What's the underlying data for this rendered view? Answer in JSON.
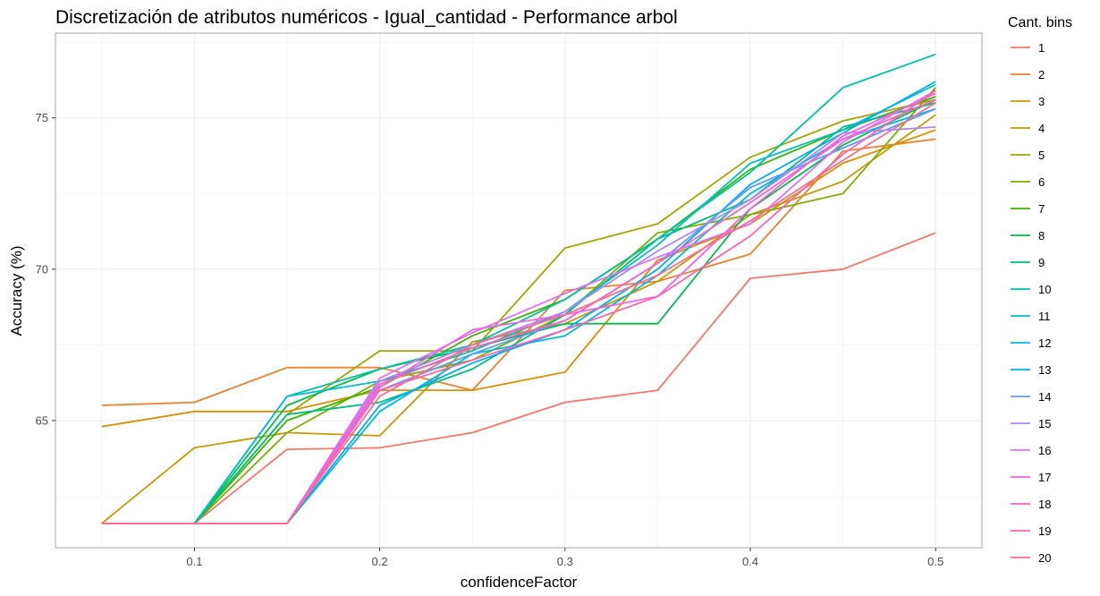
{
  "chart_data": {
    "type": "line",
    "title": "Discretización de atributos numéricos - Igual_cantidad - Performance arbol",
    "xlabel": "confidenceFactor",
    "ylabel": "Accuracy (%)",
    "xlim": [
      0.025,
      0.525
    ],
    "ylim": [
      60.8,
      77.8
    ],
    "xticks": [
      0.1,
      0.2,
      0.3,
      0.4,
      0.5
    ],
    "xtick_labels": [
      "0.1",
      "0.2",
      "0.3",
      "0.4",
      "0.5"
    ],
    "yticks": [
      65,
      70,
      75
    ],
    "ytick_labels": [
      "65",
      "70",
      "75"
    ],
    "grid": true,
    "legend": {
      "title": "Cant. bins",
      "position": "right"
    },
    "x": [
      0.05,
      0.1,
      0.15,
      0.2,
      0.25,
      0.3,
      0.35,
      0.4,
      0.45,
      0.5
    ],
    "series": [
      {
        "name": "1",
        "color": "#F8766D",
        "values": [
          61.6,
          61.6,
          64.05,
          64.1,
          64.6,
          65.6,
          66.0,
          69.7,
          70.0,
          71.2
        ]
      },
      {
        "name": "2",
        "color": "#EA8331",
        "values": [
          65.5,
          65.6,
          66.75,
          66.75,
          66.0,
          69.3,
          69.6,
          70.5,
          73.9,
          74.3
        ]
      },
      {
        "name": "3",
        "color": "#D89000",
        "values": [
          64.8,
          65.3,
          65.3,
          66.0,
          66.0,
          66.6,
          70.3,
          71.5,
          73.5,
          74.6
        ]
      },
      {
        "name": "4",
        "color": "#C09B00",
        "values": [
          61.6,
          64.1,
          64.6,
          64.5,
          67.6,
          68.2,
          69.6,
          71.8,
          72.9,
          75.1
        ]
      },
      {
        "name": "5",
        "color": "#A3A500",
        "values": [
          61.6,
          61.6,
          65.2,
          67.3,
          67.3,
          70.7,
          71.5,
          73.7,
          74.9,
          75.6
        ]
      },
      {
        "name": "6",
        "color": "#7CAE00",
        "values": [
          61.6,
          61.6,
          64.6,
          66.3,
          67.0,
          68.5,
          71.2,
          71.8,
          72.5,
          76.0
        ]
      },
      {
        "name": "7",
        "color": "#39B600",
        "values": [
          61.6,
          61.6,
          65.0,
          66.1,
          67.8,
          69.0,
          71.0,
          73.3,
          74.6,
          75.7
        ]
      },
      {
        "name": "8",
        "color": "#00BB4E",
        "values": [
          61.6,
          61.6,
          65.5,
          66.7,
          67.4,
          68.2,
          68.2,
          72.0,
          74.1,
          75.6
        ]
      },
      {
        "name": "9",
        "color": "#00BF7D",
        "values": [
          61.6,
          61.6,
          65.2,
          65.6,
          66.7,
          68.5,
          71.0,
          72.3,
          74.7,
          75.5
        ]
      },
      {
        "name": "10",
        "color": "#00C1A3",
        "values": [
          61.6,
          61.6,
          65.8,
          66.7,
          67.5,
          69.0,
          71.0,
          73.2,
          76.0,
          77.1
        ]
      },
      {
        "name": "11",
        "color": "#00BFC4",
        "values": [
          61.6,
          61.6,
          65.8,
          66.3,
          67.3,
          68.6,
          70.8,
          73.5,
          74.6,
          76.1
        ]
      },
      {
        "name": "12",
        "color": "#00B9E3",
        "values": [
          61.6,
          61.6,
          61.6,
          65.3,
          67.2,
          67.8,
          69.8,
          72.5,
          74.3,
          75.3
        ]
      },
      {
        "name": "13",
        "color": "#00ADFA",
        "values": [
          61.6,
          61.6,
          61.6,
          65.5,
          66.9,
          68.0,
          70.0,
          72.8,
          74.5,
          76.2
        ]
      },
      {
        "name": "14",
        "color": "#619CFF",
        "values": [
          61.6,
          61.6,
          61.6,
          66.0,
          67.2,
          68.3,
          70.2,
          72.7,
          74.0,
          75.3
        ]
      },
      {
        "name": "15",
        "color": "#AE87FF",
        "values": [
          61.6,
          61.6,
          61.6,
          66.3,
          67.5,
          68.6,
          70.6,
          72.3,
          74.5,
          74.7
        ]
      },
      {
        "name": "16",
        "color": "#DB72FB",
        "values": [
          61.6,
          61.6,
          61.6,
          66.4,
          67.9,
          69.2,
          70.4,
          71.5,
          74.2,
          75.9
        ]
      },
      {
        "name": "17",
        "color": "#F564E3",
        "values": [
          61.6,
          61.6,
          61.6,
          66.1,
          68.0,
          68.5,
          69.1,
          72.0,
          74.4,
          75.8
        ]
      },
      {
        "name": "18",
        "color": "#FF61C3",
        "values": [
          61.6,
          61.6,
          61.6,
          66.2,
          67.4,
          68.3,
          70.2,
          72.2,
          74.3,
          75.6
        ]
      },
      {
        "name": "19",
        "color": "#FF64B0",
        "values": [
          61.6,
          61.6,
          61.6,
          66.0,
          67.0,
          68.0,
          69.1,
          71.1,
          73.8,
          75.9
        ]
      },
      {
        "name": "20",
        "color": "#FF6C91",
        "values": [
          61.6,
          61.6,
          61.6,
          65.8,
          67.5,
          68.5,
          69.8,
          71.6,
          73.6,
          75.5
        ]
      }
    ]
  }
}
